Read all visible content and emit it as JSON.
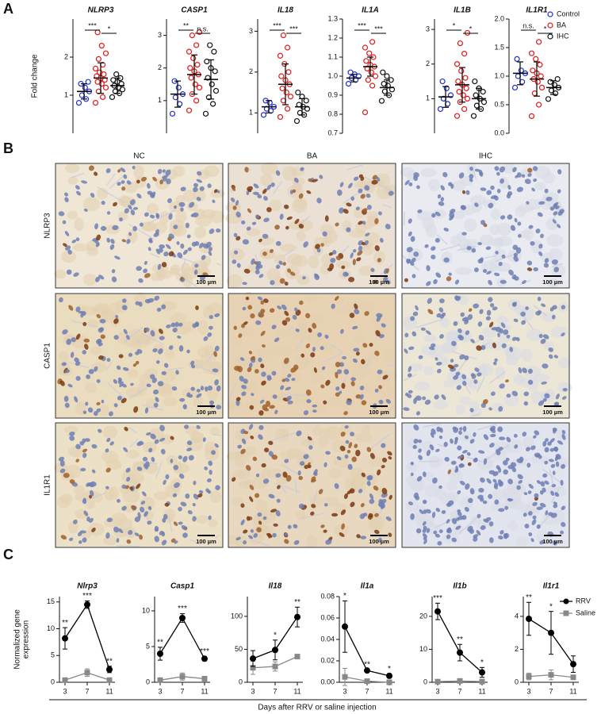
{
  "panel_labels": [
    "A",
    "B",
    "C"
  ],
  "panel_b": {
    "columns": [
      "NC",
      "BA",
      "IHC"
    ],
    "rows": [
      "NLRP3",
      "CASP1",
      "IL1R1"
    ],
    "scale_bar": "100 µm"
  },
  "panel_c_xlabel": "Days after RRV or saline injection",
  "chart_data": [
    {
      "type": "dotplot",
      "title": "NLRP3",
      "ylabel": "Fold change",
      "ylim": [
        0,
        3
      ],
      "yticks": [
        1,
        2
      ],
      "brackets": [
        "***",
        "*"
      ],
      "groups": [
        {
          "name": "Control",
          "color": "#1f2fd0",
          "values": [
            0.8,
            0.9,
            1.0,
            1.1,
            1.2,
            1.3,
            1.35
          ],
          "mean": 1.1,
          "sd": 0.2
        },
        {
          "name": "BA",
          "color": "#e01818",
          "values": [
            0.8,
            0.95,
            1.1,
            1.2,
            1.3,
            1.35,
            1.4,
            1.45,
            1.5,
            1.55,
            1.6,
            1.7,
            1.8,
            1.95,
            2.1,
            2.3,
            2.65
          ],
          "mean": 1.45,
          "sd": 0.4
        },
        {
          "name": "IHC",
          "color": "#111111",
          "values": [
            0.95,
            1.05,
            1.1,
            1.15,
            1.2,
            1.25,
            1.3,
            1.35,
            1.4,
            1.45,
            1.55
          ],
          "mean": 1.25,
          "sd": 0.2
        }
      ]
    },
    {
      "type": "dotplot",
      "title": "CASP1",
      "ylim": [
        0,
        3.5
      ],
      "yticks": [
        1,
        2,
        3
      ],
      "brackets": [
        "**",
        "n.s."
      ],
      "groups": [
        {
          "name": "Control",
          "color": "#1f2fd0",
          "values": [
            0.6,
            0.9,
            1.1,
            1.2,
            1.4,
            1.6
          ],
          "mean": 1.2,
          "sd": 0.4
        },
        {
          "name": "BA",
          "color": "#e01818",
          "values": [
            0.7,
            1.0,
            1.2,
            1.4,
            1.5,
            1.7,
            1.8,
            1.9,
            2.0,
            2.1,
            2.3,
            2.5,
            2.7,
            3.0,
            3.1
          ],
          "mean": 1.8,
          "sd": 0.6
        },
        {
          "name": "IHC",
          "color": "#111111",
          "values": [
            0.6,
            0.9,
            1.1,
            1.3,
            1.5,
            1.7,
            1.9,
            2.0,
            2.2,
            2.5,
            2.7
          ],
          "mean": 1.65,
          "sd": 0.6
        }
      ]
    },
    {
      "type": "dotplot",
      "title": "IL18",
      "ylim": [
        0.5,
        3.3
      ],
      "yticks": [
        1,
        2,
        3
      ],
      "brackets": [
        "***",
        "***"
      ],
      "groups": [
        {
          "name": "Control",
          "color": "#1f2fd0",
          "values": [
            0.95,
            1.05,
            1.1,
            1.15,
            1.25,
            1.3
          ],
          "mean": 1.15,
          "sd": 0.15
        },
        {
          "name": "BA",
          "color": "#e01818",
          "values": [
            0.9,
            1.1,
            1.3,
            1.4,
            1.5,
            1.6,
            1.7,
            1.8,
            1.9,
            2.0,
            2.2,
            2.4,
            2.6,
            2.9
          ],
          "mean": 1.7,
          "sd": 0.5
        },
        {
          "name": "IHC",
          "color": "#111111",
          "values": [
            0.8,
            0.95,
            1.0,
            1.1,
            1.15,
            1.2,
            1.3,
            1.4,
            1.5
          ],
          "mean": 1.15,
          "sd": 0.2
        }
      ]
    },
    {
      "type": "dotplot",
      "title": "IL1A",
      "ylim": [
        0.7,
        1.3
      ],
      "yticks": [
        0.7,
        0.8,
        0.9,
        {
          "value": 1.0,
          "label": "1.0"
        },
        1.1,
        1.2,
        1.3
      ],
      "brackets": [
        "***",
        "***"
      ],
      "groups": [
        {
          "name": "Control",
          "color": "#1f2fd0",
          "values": [
            0.96,
            0.98,
            0.99,
            1.0,
            1.01,
            1.02
          ],
          "mean": 0.99,
          "sd": 0.02
        },
        {
          "name": "BA",
          "color": "#e01818",
          "values": [
            0.81,
            0.95,
            0.98,
            1.0,
            1.02,
            1.04,
            1.05,
            1.06,
            1.08,
            1.1,
            1.12,
            1.15,
            1.18
          ],
          "mean": 1.05,
          "sd": 0.05
        },
        {
          "name": "IHC",
          "color": "#111111",
          "values": [
            0.87,
            0.9,
            0.92,
            0.93,
            0.95,
            0.96,
            0.98,
            1.0,
            1.02
          ],
          "mean": 0.94,
          "sd": 0.04
        }
      ]
    },
    {
      "type": "dotplot",
      "title": "IL1B",
      "ylim": [
        0,
        3.3
      ],
      "yticks": [
        1,
        2,
        3
      ],
      "brackets": [
        "*",
        "*"
      ],
      "groups": [
        {
          "name": "Control",
          "color": "#1f2fd0",
          "values": [
            0.7,
            0.85,
            1.0,
            1.1,
            1.3,
            1.5
          ],
          "mean": 1.05,
          "sd": 0.3
        },
        {
          "name": "BA",
          "color": "#e01818",
          "values": [
            0.5,
            0.7,
            0.9,
            1.0,
            1.1,
            1.2,
            1.3,
            1.4,
            1.5,
            1.6,
            1.8,
            2.0,
            2.3,
            2.6,
            2.9
          ],
          "mean": 1.4,
          "sd": 0.5
        },
        {
          "name": "IHC",
          "color": "#111111",
          "values": [
            0.5,
            0.7,
            0.8,
            0.9,
            1.0,
            1.1,
            1.2,
            1.3,
            1.5
          ],
          "mean": 1.0,
          "sd": 0.3
        }
      ]
    },
    {
      "type": "dotplot",
      "title": "IL1R1",
      "ylim": [
        0,
        2
      ],
      "legend": true,
      "yticks": [
        {
          "value": 0,
          "label": "0.0"
        },
        0.5,
        {
          "value": 1,
          "label": "1.0"
        },
        1.5,
        {
          "value": 2,
          "label": "2.0"
        }
      ],
      "brackets": [
        "n.s.",
        "*"
      ],
      "groups": [
        {
          "name": "Control",
          "color": "#1f2fd0",
          "values": [
            0.8,
            0.9,
            1.0,
            1.05,
            1.1,
            1.3
          ],
          "mean": 1.05,
          "sd": 0.2
        },
        {
          "name": "BA",
          "color": "#e01818",
          "values": [
            0.3,
            0.5,
            0.7,
            0.8,
            0.9,
            0.95,
            1.0,
            1.05,
            1.1,
            1.2,
            1.3,
            1.4,
            1.6
          ],
          "mean": 0.95,
          "sd": 0.3
        },
        {
          "name": "IHC",
          "color": "#111111",
          "values": [
            0.6,
            0.7,
            0.75,
            0.8,
            0.85,
            0.9,
            0.95
          ],
          "mean": 0.8,
          "sd": 0.12
        }
      ]
    },
    {
      "type": "line",
      "title": "Nlrp3",
      "ylabel": [
        "Normalized gene",
        "expression"
      ],
      "x": [
        3,
        7,
        11
      ],
      "xlim": [
        2,
        12
      ],
      "ylim": [
        0,
        16
      ],
      "yticks": [
        0,
        5,
        10,
        15
      ],
      "significance": [
        "**",
        "***",
        "**"
      ],
      "series": [
        {
          "name": "RRV",
          "color": "#000000",
          "marker": "circle",
          "values": [
            8.2,
            14.5,
            2.4
          ],
          "errors": [
            2,
            0.7,
            0.6
          ]
        },
        {
          "name": "Saline",
          "color": "#888888",
          "marker": "square",
          "values": [
            0.4,
            1.8,
            0.4
          ],
          "errors": [
            0.2,
            0.7,
            0.2
          ]
        }
      ]
    },
    {
      "type": "line",
      "title": "Casp1",
      "x": [
        3,
        7,
        11
      ],
      "xlim": [
        2,
        12
      ],
      "ylim": [
        0,
        12
      ],
      "yticks": [
        0,
        5,
        10
      ],
      "significance": [
        "**",
        "***",
        "***"
      ],
      "series": [
        {
          "name": "RRV",
          "color": "#000000",
          "marker": "circle",
          "values": [
            4.0,
            9.0,
            3.3
          ],
          "errors": [
            0.9,
            0.6,
            0.3
          ]
        },
        {
          "name": "Saline",
          "color": "#888888",
          "marker": "square",
          "values": [
            0.3,
            0.8,
            0.5
          ],
          "errors": [
            0.2,
            0.5,
            0.2
          ]
        }
      ]
    },
    {
      "type": "line",
      "title": "Il18",
      "x": [
        3,
        7,
        11
      ],
      "xlim": [
        2,
        12
      ],
      "ylim": [
        0,
        130
      ],
      "yticks": [
        0,
        50,
        100
      ],
      "significance": [
        null,
        "*",
        "**"
      ],
      "series": [
        {
          "name": "RRV",
          "color": "#000000",
          "marker": "circle",
          "values": [
            36,
            49,
            99
          ],
          "errors": [
            12,
            15,
            15
          ]
        },
        {
          "name": "Saline",
          "color": "#888888",
          "marker": "square",
          "values": [
            22,
            24,
            39
          ],
          "errors": [
            10,
            7,
            2
          ]
        }
      ]
    },
    {
      "type": "line",
      "title": "Il1a",
      "x": [
        3,
        7,
        11
      ],
      "xlim": [
        2,
        12
      ],
      "ylim": [
        0,
        0.08
      ],
      "yticks": [
        {
          "value": 0,
          "label": "0.00"
        },
        {
          "value": 0.02,
          "label": "0.02"
        },
        {
          "value": 0.04,
          "label": "0.04"
        },
        {
          "value": 0.06,
          "label": "0.06"
        },
        {
          "value": 0.08,
          "label": "0.08"
        }
      ],
      "significance": [
        "*",
        "**",
        "*"
      ],
      "series": [
        {
          "name": "RRV",
          "color": "#000000",
          "marker": "circle",
          "values": [
            0.052,
            0.011,
            0.006
          ],
          "errors": [
            0.024,
            0.001,
            0.002
          ]
        },
        {
          "name": "Saline",
          "color": "#888888",
          "marker": "square",
          "values": [
            0.005,
            0.001,
            0.0
          ],
          "errors": [
            0.008,
            0.001,
            0.001
          ]
        }
      ]
    },
    {
      "type": "line",
      "title": "Il1b",
      "x": [
        3,
        7,
        11
      ],
      "xlim": [
        2,
        12
      ],
      "ylim": [
        0,
        26
      ],
      "yticks": [
        0,
        10,
        20
      ],
      "significance": [
        "***",
        "**",
        "*"
      ],
      "series": [
        {
          "name": "RRV",
          "color": "#000000",
          "marker": "circle",
          "values": [
            21.5,
            9,
            3
          ],
          "errors": [
            2.5,
            2.5,
            1.5
          ]
        },
        {
          "name": "Saline",
          "color": "#888888",
          "marker": "square",
          "values": [
            0.2,
            0.4,
            0.2
          ],
          "errors": [
            0.2,
            0.3,
            0.1
          ]
        }
      ]
    },
    {
      "type": "line",
      "title": "Il1r1",
      "x": [
        3,
        7,
        11
      ],
      "xlim": [
        2,
        12
      ],
      "ylim": [
        0,
        5.2
      ],
      "yticks": [
        0,
        2,
        4
      ],
      "significance": [
        "**",
        "*",
        null
      ],
      "legend": true,
      "series": [
        {
          "name": "RRV",
          "color": "#000000",
          "marker": "circle",
          "values": [
            3.85,
            3.0,
            1.1
          ],
          "errors": [
            1.0,
            1.3,
            0.5
          ]
        },
        {
          "name": "Saline",
          "color": "#888888",
          "marker": "square",
          "values": [
            0.35,
            0.45,
            0.3
          ],
          "errors": [
            0.2,
            0.3,
            0.1
          ]
        }
      ]
    }
  ]
}
